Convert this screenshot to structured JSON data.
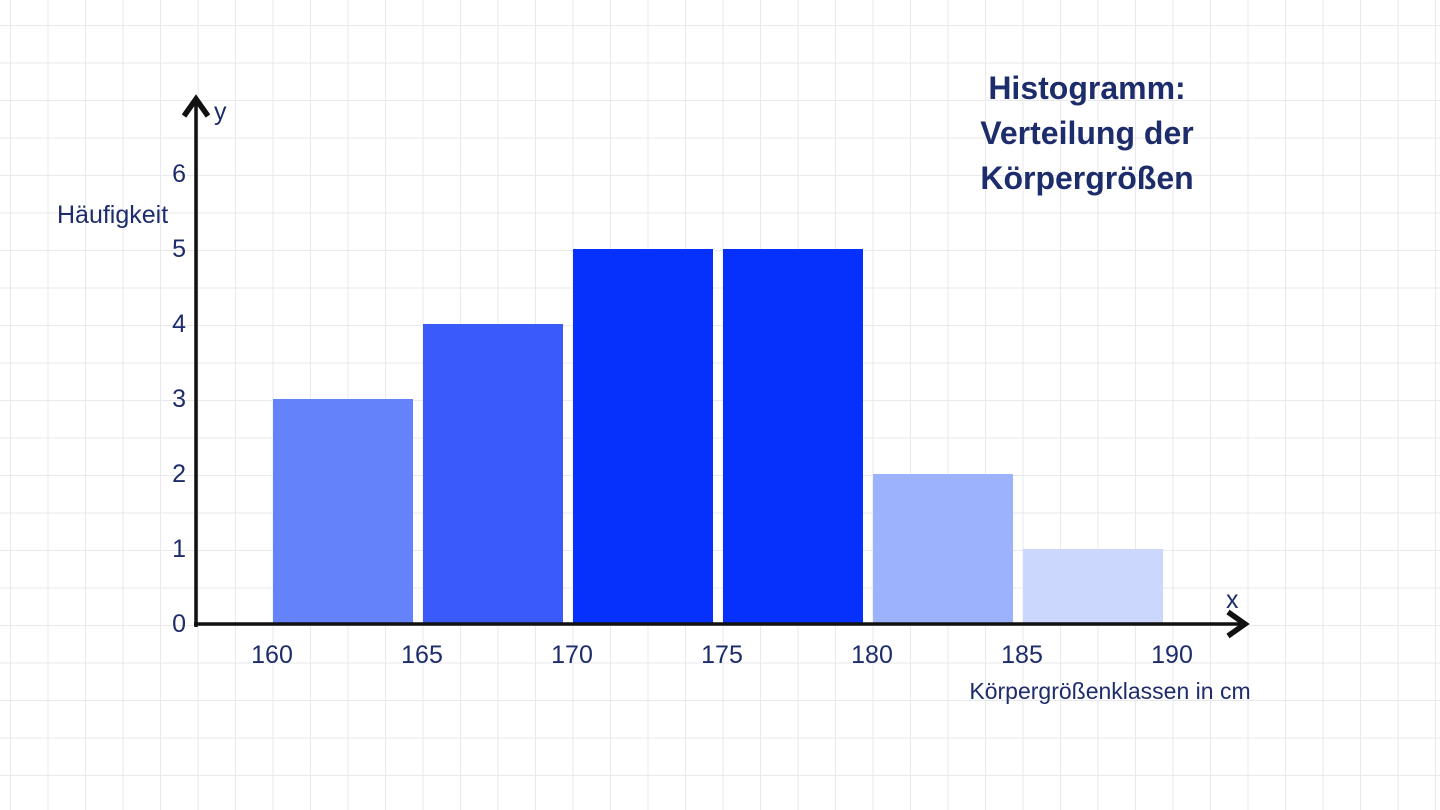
{
  "chart_data": {
    "type": "bar",
    "subtype": "histogram",
    "title": "Histogramm:\nVerteilung der\nKörpergrößen",
    "ylabel": "Häufigkeit",
    "xlabel": "Körpergrößenklassen in cm",
    "x_axis_symbol": "x",
    "y_axis_symbol": "y",
    "categories": [
      "160-165",
      "165-170",
      "170-175",
      "175-180",
      "180-185",
      "185-190"
    ],
    "values": [
      3,
      4,
      5,
      5,
      2,
      1
    ],
    "bins": [
      {
        "from": 160,
        "to": 165,
        "value": 3,
        "color": "#6483fb"
      },
      {
        "from": 165,
        "to": 170,
        "value": 4,
        "color": "#3a5bfa"
      },
      {
        "from": 170,
        "to": 175,
        "value": 5,
        "color": "#0630fb"
      },
      {
        "from": 175,
        "to": 180,
        "value": 5,
        "color": "#0630fb"
      },
      {
        "from": 180,
        "to": 185,
        "value": 2,
        "color": "#9db2fc"
      },
      {
        "from": 185,
        "to": 190,
        "value": 1,
        "color": "#cbd7fd"
      }
    ],
    "x_ticks": [
      160,
      165,
      170,
      175,
      180,
      185,
      190
    ],
    "y_ticks": [
      0,
      1,
      2,
      3,
      4,
      5,
      6
    ],
    "xlim": [
      160,
      190
    ],
    "ylim": [
      0,
      7
    ],
    "grid": true,
    "legend": false,
    "colors": {
      "text": "#1d2c6b",
      "axis": "#111111",
      "grid": "#e9e9ed",
      "background": "#ffffff"
    }
  }
}
